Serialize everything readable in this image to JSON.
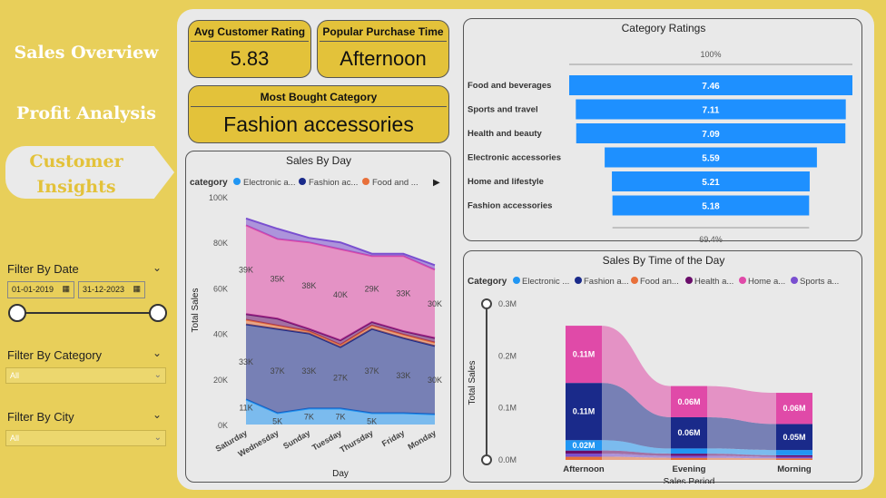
{
  "nav": {
    "sales_overview": "Sales Overview",
    "profit_analysis": "Profit Analysis",
    "customer_insights": "Customer Insights"
  },
  "filters": {
    "date_title": "Filter By Date",
    "date_start": "01-01-2019",
    "date_end": "31-12-2023",
    "category_title": "Filter By Category",
    "category_value": "All",
    "city_title": "Filter By City",
    "city_value": "All"
  },
  "kpis": {
    "avg_rating_title": "Avg Customer Rating",
    "avg_rating_value": "5.83",
    "purchase_time_title": "Popular Purchase Time",
    "purchase_time_value": "Afternoon",
    "most_bought_title": "Most Bought Category",
    "most_bought_value": "Fashion accessories"
  },
  "colors": {
    "electronic": "#2196f3",
    "fashion": "#1a2a8a",
    "food": "#e8703a",
    "health": "#6a0d6a",
    "home": "#e04aa8",
    "sports": "#7a4fd0",
    "funnel": "#1e90ff"
  },
  "chart_data": [
    {
      "type": "area",
      "title": "Sales By Day",
      "xlabel": "Day",
      "ylabel": "Total Sales",
      "legend_title": "category",
      "legend": [
        "Electronic a...",
        "Fashion ac...",
        "Food and ..."
      ],
      "categories": [
        "Saturday",
        "Wednesday",
        "Sunday",
        "Tuesday",
        "Thursday",
        "Friday",
        "Monday"
      ],
      "y_ticks": [
        "0K",
        "20K",
        "40K",
        "60K",
        "80K",
        "100K"
      ],
      "ylim": [
        0,
        100000
      ],
      "stacked": true,
      "series": [
        {
          "values": [
            11000,
            5000,
            7000,
            7000,
            5000,
            5000,
            4500
          ],
          "labels": [
            "11K",
            "5K",
            "7K",
            "7K",
            "5K",
            "",
            ""
          ]
        },
        {
          "values": [
            33000,
            37000,
            33000,
            27000,
            37000,
            33000,
            30000
          ],
          "labels": [
            "33K",
            "37K",
            "33K",
            "27K",
            "37K",
            "33K",
            "30K"
          ]
        },
        {
          "values": [
            2000,
            1500,
            1000,
            1000,
            1500,
            1500,
            1500
          ],
          "labels": []
        },
        {
          "values": [
            2500,
            3000,
            1000,
            2000,
            1500,
            1500,
            2000
          ],
          "labels": []
        },
        {
          "values": [
            39000,
            35000,
            38000,
            40000,
            29000,
            33000,
            30000
          ],
          "labels": [
            "39K",
            "35K",
            "38K",
            "40K",
            "29K",
            "33K",
            "30K"
          ]
        },
        {
          "values": [
            3000,
            4500,
            2000,
            3000,
            1000,
            1000,
            2000
          ],
          "labels": []
        }
      ]
    },
    {
      "type": "bar",
      "title": "Category Ratings",
      "top_label": "100%",
      "bottom_label": "69.4%",
      "categories": [
        "Food and beverages",
        "Sports and travel",
        "Health and beauty",
        "Electronic accessories",
        "Home and lifestyle",
        "Fashion accessories"
      ],
      "values": [
        7.46,
        7.11,
        7.09,
        5.59,
        5.21,
        5.18
      ],
      "labels": [
        "7.46",
        "7.11",
        "7.09",
        "5.59",
        "5.21",
        "5.18"
      ]
    },
    {
      "type": "area",
      "title": "Sales By Time of the Day",
      "xlabel": "Sales Period",
      "ylabel": "Total Sales",
      "legend_title": "Category",
      "legend": [
        "Electronic ...",
        "Fashion a...",
        "Food an...",
        "Health a...",
        "Home a...",
        "Sports a..."
      ],
      "categories": [
        "Afternoon",
        "Evening",
        "Morning"
      ],
      "y_ticks": [
        "0.0M",
        "0.1M",
        "0.2M",
        "0.3M"
      ],
      "ylim": [
        0,
        0.3
      ],
      "series": [
        {
          "values": [
            0.02,
            0.01,
            0.01
          ],
          "labels": [
            "0.02M",
            "",
            ""
          ]
        },
        {
          "values": [
            0.11,
            0.06,
            0.05
          ],
          "labels": [
            "0.11M",
            "0.06M",
            "0.05M"
          ]
        },
        {
          "values": [
            0.006,
            0.004,
            0.003
          ],
          "labels": []
        },
        {
          "values": [
            0.006,
            0.004,
            0.003
          ],
          "labels": []
        },
        {
          "values": [
            0.11,
            0.06,
            0.06
          ],
          "labels": [
            "0.11M",
            "0.06M",
            "0.06M"
          ]
        },
        {
          "values": [
            0.006,
            0.004,
            0.003
          ],
          "labels": []
        }
      ]
    }
  ]
}
